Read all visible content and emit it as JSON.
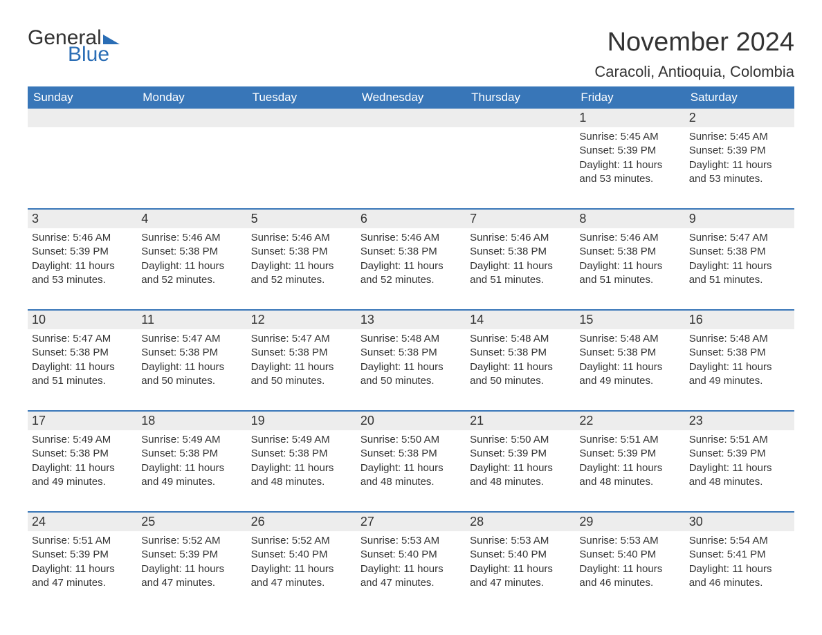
{
  "logo": {
    "word1": "General",
    "word2": "Blue",
    "triangle_color": "#2a6db5"
  },
  "title": "November 2024",
  "location": "Caracoli, Antioquia, Colombia",
  "colors": {
    "header_bg": "#3876b8",
    "header_text": "#ffffff",
    "daynum_bg": "#ededed",
    "text": "#333333",
    "rule": "#3876b8",
    "page_bg": "#ffffff"
  },
  "typography": {
    "title_fontsize": 38,
    "location_fontsize": 22,
    "weekday_fontsize": 17,
    "daynum_fontsize": 18,
    "body_fontsize": 15,
    "font_family": "Arial"
  },
  "layout": {
    "columns": 7,
    "rows": 5,
    "week_start": "Sunday"
  },
  "weekdays": [
    "Sunday",
    "Monday",
    "Tuesday",
    "Wednesday",
    "Thursday",
    "Friday",
    "Saturday"
  ],
  "weeks": [
    [
      {
        "n": "",
        "empty": true
      },
      {
        "n": "",
        "empty": true
      },
      {
        "n": "",
        "empty": true
      },
      {
        "n": "",
        "empty": true
      },
      {
        "n": "",
        "empty": true
      },
      {
        "n": "1",
        "sunrise": "Sunrise: 5:45 AM",
        "sunset": "Sunset: 5:39 PM",
        "daylight": "Daylight: 11 hours and 53 minutes."
      },
      {
        "n": "2",
        "sunrise": "Sunrise: 5:45 AM",
        "sunset": "Sunset: 5:39 PM",
        "daylight": "Daylight: 11 hours and 53 minutes."
      }
    ],
    [
      {
        "n": "3",
        "sunrise": "Sunrise: 5:46 AM",
        "sunset": "Sunset: 5:39 PM",
        "daylight": "Daylight: 11 hours and 53 minutes."
      },
      {
        "n": "4",
        "sunrise": "Sunrise: 5:46 AM",
        "sunset": "Sunset: 5:38 PM",
        "daylight": "Daylight: 11 hours and 52 minutes."
      },
      {
        "n": "5",
        "sunrise": "Sunrise: 5:46 AM",
        "sunset": "Sunset: 5:38 PM",
        "daylight": "Daylight: 11 hours and 52 minutes."
      },
      {
        "n": "6",
        "sunrise": "Sunrise: 5:46 AM",
        "sunset": "Sunset: 5:38 PM",
        "daylight": "Daylight: 11 hours and 52 minutes."
      },
      {
        "n": "7",
        "sunrise": "Sunrise: 5:46 AM",
        "sunset": "Sunset: 5:38 PM",
        "daylight": "Daylight: 11 hours and 51 minutes."
      },
      {
        "n": "8",
        "sunrise": "Sunrise: 5:46 AM",
        "sunset": "Sunset: 5:38 PM",
        "daylight": "Daylight: 11 hours and 51 minutes."
      },
      {
        "n": "9",
        "sunrise": "Sunrise: 5:47 AM",
        "sunset": "Sunset: 5:38 PM",
        "daylight": "Daylight: 11 hours and 51 minutes."
      }
    ],
    [
      {
        "n": "10",
        "sunrise": "Sunrise: 5:47 AM",
        "sunset": "Sunset: 5:38 PM",
        "daylight": "Daylight: 11 hours and 51 minutes."
      },
      {
        "n": "11",
        "sunrise": "Sunrise: 5:47 AM",
        "sunset": "Sunset: 5:38 PM",
        "daylight": "Daylight: 11 hours and 50 minutes."
      },
      {
        "n": "12",
        "sunrise": "Sunrise: 5:47 AM",
        "sunset": "Sunset: 5:38 PM",
        "daylight": "Daylight: 11 hours and 50 minutes."
      },
      {
        "n": "13",
        "sunrise": "Sunrise: 5:48 AM",
        "sunset": "Sunset: 5:38 PM",
        "daylight": "Daylight: 11 hours and 50 minutes."
      },
      {
        "n": "14",
        "sunrise": "Sunrise: 5:48 AM",
        "sunset": "Sunset: 5:38 PM",
        "daylight": "Daylight: 11 hours and 50 minutes."
      },
      {
        "n": "15",
        "sunrise": "Sunrise: 5:48 AM",
        "sunset": "Sunset: 5:38 PM",
        "daylight": "Daylight: 11 hours and 49 minutes."
      },
      {
        "n": "16",
        "sunrise": "Sunrise: 5:48 AM",
        "sunset": "Sunset: 5:38 PM",
        "daylight": "Daylight: 11 hours and 49 minutes."
      }
    ],
    [
      {
        "n": "17",
        "sunrise": "Sunrise: 5:49 AM",
        "sunset": "Sunset: 5:38 PM",
        "daylight": "Daylight: 11 hours and 49 minutes."
      },
      {
        "n": "18",
        "sunrise": "Sunrise: 5:49 AM",
        "sunset": "Sunset: 5:38 PM",
        "daylight": "Daylight: 11 hours and 49 minutes."
      },
      {
        "n": "19",
        "sunrise": "Sunrise: 5:49 AM",
        "sunset": "Sunset: 5:38 PM",
        "daylight": "Daylight: 11 hours and 48 minutes."
      },
      {
        "n": "20",
        "sunrise": "Sunrise: 5:50 AM",
        "sunset": "Sunset: 5:38 PM",
        "daylight": "Daylight: 11 hours and 48 minutes."
      },
      {
        "n": "21",
        "sunrise": "Sunrise: 5:50 AM",
        "sunset": "Sunset: 5:39 PM",
        "daylight": "Daylight: 11 hours and 48 minutes."
      },
      {
        "n": "22",
        "sunrise": "Sunrise: 5:51 AM",
        "sunset": "Sunset: 5:39 PM",
        "daylight": "Daylight: 11 hours and 48 minutes."
      },
      {
        "n": "23",
        "sunrise": "Sunrise: 5:51 AM",
        "sunset": "Sunset: 5:39 PM",
        "daylight": "Daylight: 11 hours and 48 minutes."
      }
    ],
    [
      {
        "n": "24",
        "sunrise": "Sunrise: 5:51 AM",
        "sunset": "Sunset: 5:39 PM",
        "daylight": "Daylight: 11 hours and 47 minutes."
      },
      {
        "n": "25",
        "sunrise": "Sunrise: 5:52 AM",
        "sunset": "Sunset: 5:39 PM",
        "daylight": "Daylight: 11 hours and 47 minutes."
      },
      {
        "n": "26",
        "sunrise": "Sunrise: 5:52 AM",
        "sunset": "Sunset: 5:40 PM",
        "daylight": "Daylight: 11 hours and 47 minutes."
      },
      {
        "n": "27",
        "sunrise": "Sunrise: 5:53 AM",
        "sunset": "Sunset: 5:40 PM",
        "daylight": "Daylight: 11 hours and 47 minutes."
      },
      {
        "n": "28",
        "sunrise": "Sunrise: 5:53 AM",
        "sunset": "Sunset: 5:40 PM",
        "daylight": "Daylight: 11 hours and 47 minutes."
      },
      {
        "n": "29",
        "sunrise": "Sunrise: 5:53 AM",
        "sunset": "Sunset: 5:40 PM",
        "daylight": "Daylight: 11 hours and 46 minutes."
      },
      {
        "n": "30",
        "sunrise": "Sunrise: 5:54 AM",
        "sunset": "Sunset: 5:41 PM",
        "daylight": "Daylight: 11 hours and 46 minutes."
      }
    ]
  ]
}
